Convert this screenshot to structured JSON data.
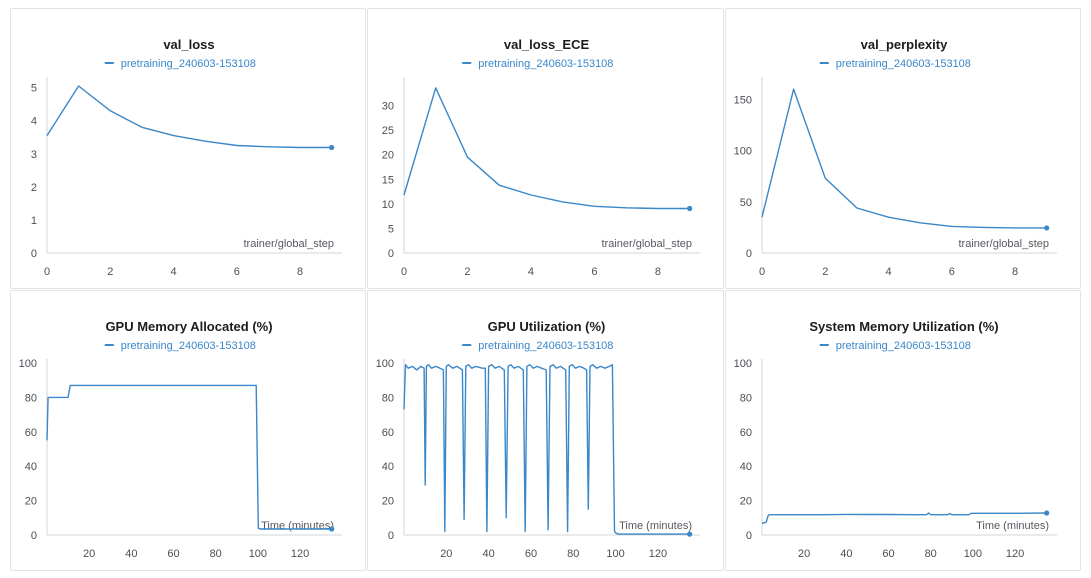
{
  "chart_data": [
    {
      "id": "val-loss",
      "type": "line",
      "title": "val_loss",
      "xlabel": "trainer/global_step",
      "ylabel": "",
      "xlim": [
        0,
        9.2
      ],
      "ylim": [
        0,
        5.2
      ],
      "xticks": [
        0,
        2,
        4,
        6,
        8
      ],
      "yticks": [
        0,
        1,
        2,
        3,
        4,
        5
      ],
      "series": [
        {
          "name": "pretraining_240603-153108",
          "color": "#3a87c9",
          "x": [
            0,
            1,
            2,
            3,
            4,
            5,
            6,
            7,
            8,
            9
          ],
          "y": [
            3.55,
            5.05,
            4.3,
            3.8,
            3.55,
            3.38,
            3.25,
            3.21,
            3.19,
            3.19
          ]
        }
      ]
    },
    {
      "id": "val-loss-ece",
      "type": "line",
      "title": "val_loss_ECE",
      "xlabel": "trainer/global_step",
      "ylabel": "",
      "xlim": [
        0,
        9.2
      ],
      "ylim": [
        0,
        35
      ],
      "xticks": [
        0,
        2,
        4,
        6,
        8
      ],
      "yticks": [
        0,
        5,
        10,
        15,
        20,
        25,
        30
      ],
      "series": [
        {
          "name": "pretraining_240603-153108",
          "color": "#3a87c9",
          "x": [
            0,
            1,
            2,
            3,
            4,
            5,
            6,
            7,
            8,
            9
          ],
          "y": [
            11.8,
            33.6,
            19.5,
            13.8,
            11.8,
            10.4,
            9.5,
            9.2,
            9.05,
            9.05
          ]
        }
      ]
    },
    {
      "id": "val-perplexity",
      "type": "line",
      "title": "val_perplexity",
      "xlabel": "trainer/global_step",
      "ylabel": "",
      "xlim": [
        0,
        9.2
      ],
      "ylim": [
        0,
        168
      ],
      "xticks": [
        0,
        2,
        4,
        6,
        8
      ],
      "yticks": [
        0,
        50,
        100,
        150
      ],
      "series": [
        {
          "name": "pretraining_240603-153108",
          "color": "#3a87c9",
          "x": [
            0,
            1,
            2,
            3,
            4,
            5,
            6,
            7,
            8,
            9
          ],
          "y": [
            35,
            160,
            73,
            44,
            35,
            29.5,
            26,
            25,
            24.5,
            24.5
          ]
        }
      ]
    },
    {
      "id": "gpu-memory",
      "type": "line",
      "title": "GPU Memory Allocated (%)",
      "xlabel": "Time (minutes)",
      "ylabel": "",
      "xlim": [
        0,
        138
      ],
      "ylim": [
        0,
        100
      ],
      "xticks": [
        20,
        40,
        60,
        80,
        100,
        120
      ],
      "yticks": [
        0,
        20,
        40,
        60,
        80,
        100
      ],
      "series": [
        {
          "name": "pretraining_240603-153108",
          "color": "#3a87c9",
          "x": [
            0,
            0.5,
            1.5,
            10,
            11,
            98.7,
            99.2,
            100.2,
            101,
            135
          ],
          "y": [
            55,
            80,
            80,
            80,
            87,
            87,
            87,
            4,
            3.5,
            3.5
          ]
        }
      ]
    },
    {
      "id": "gpu-utilization",
      "type": "line",
      "title": "GPU Utilization (%)",
      "xlabel": "Time (minutes)",
      "ylabel": "",
      "xlim": [
        0,
        138
      ],
      "ylim": [
        0,
        100
      ],
      "xticks": [
        20,
        40,
        60,
        80,
        100,
        120
      ],
      "yticks": [
        0,
        20,
        40,
        60,
        80,
        100
      ],
      "series": [
        {
          "name": "pretraining_240603-153108",
          "color": "#3a87c9",
          "x": [
            0,
            0.7,
            2,
            4,
            6,
            8,
            9.5,
            10,
            10.6,
            11.5,
            13,
            15,
            17,
            18.6,
            19.3,
            20,
            21,
            23,
            25,
            27.6,
            28.4,
            29.2,
            30.5,
            32,
            34,
            37,
            38.4,
            39.2,
            40,
            41.5,
            43,
            45,
            47.4,
            48.3,
            49.2,
            50.5,
            52,
            54,
            56.4,
            57.3,
            58.1,
            59.5,
            61,
            63,
            65,
            67.2,
            68.1,
            69,
            70.5,
            72,
            74,
            76.4,
            77.3,
            78.1,
            79.5,
            81,
            83,
            85,
            86.3,
            87.1,
            87.9,
            89.2,
            91,
            93,
            95,
            97,
            98.5,
            99.5,
            100.3,
            101.5,
            135
          ],
          "y": [
            73,
            99,
            97,
            98,
            96,
            98,
            97,
            29,
            98,
            99,
            97,
            98,
            97,
            96,
            2,
            98,
            99,
            97,
            98,
            96,
            9,
            98,
            99,
            97,
            98,
            97,
            97,
            2,
            98,
            99,
            97,
            98,
            96,
            10,
            98,
            99,
            97,
            98,
            96,
            2,
            98,
            99,
            97,
            98,
            97,
            96,
            3,
            98,
            99,
            97,
            98,
            96,
            2,
            98,
            99,
            97,
            98,
            97,
            96,
            15,
            98,
            99,
            97,
            98,
            97,
            98,
            99,
            2,
            1,
            0.5,
            0.5
          ]
        }
      ]
    },
    {
      "id": "system-memory",
      "type": "line",
      "title": "System Memory Utilization (%)",
      "xlabel": "Time (minutes)",
      "ylabel": "",
      "xlim": [
        0,
        138
      ],
      "ylim": [
        0,
        100
      ],
      "xticks": [
        20,
        40,
        60,
        80,
        100,
        120
      ],
      "yticks": [
        0,
        20,
        40,
        60,
        80,
        100
      ],
      "series": [
        {
          "name": "pretraining_240603-153108",
          "color": "#3a87c9",
          "x": [
            0,
            1,
            2,
            3,
            4,
            10,
            20,
            30,
            40,
            50,
            60,
            70,
            78,
            79,
            80,
            88,
            89,
            90,
            98,
            99,
            100,
            110,
            120,
            135
          ],
          "y": [
            7,
            7,
            7.5,
            11.5,
            11.8,
            11.8,
            11.8,
            11.8,
            12,
            11.9,
            11.9,
            11.8,
            11.8,
            12.8,
            11.8,
            11.8,
            12.5,
            11.8,
            11.8,
            12.5,
            12.6,
            12.6,
            12.6,
            12.8
          ]
        }
      ]
    }
  ]
}
